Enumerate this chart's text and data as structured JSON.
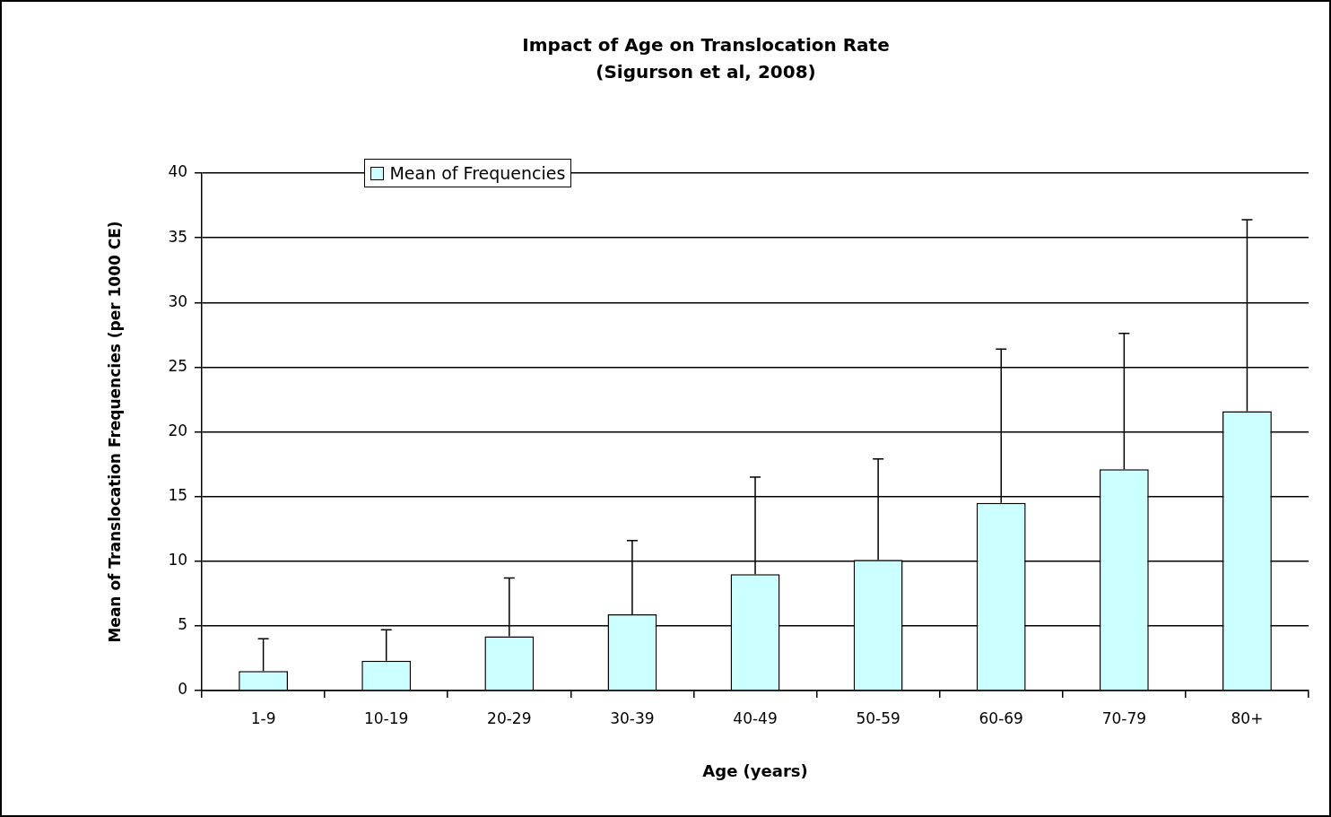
{
  "chart_data": {
    "type": "bar",
    "title": "Impact of Age on Translocation Rate",
    "subtitle": "(Sigurson et al, 2008)",
    "xlabel": "Age (years)",
    "ylabel": "Mean of Translocation Frequencies (per 1000 CE)",
    "categories": [
      "1-9",
      "10-19",
      "20-29",
      "30-39",
      "40-49",
      "50-59",
      "60-69",
      "70-79",
      "80+"
    ],
    "series": [
      {
        "name": "Mean of Frequencies",
        "color": "#ccffff",
        "values": [
          1.5,
          2.3,
          4.2,
          5.9,
          9.0,
          10.1,
          14.5,
          17.1,
          21.6
        ],
        "errors": [
          [
            1.5,
            4.0
          ],
          [
            2.3,
            4.7
          ],
          [
            4.2,
            8.7
          ],
          [
            5.9,
            11.6
          ],
          [
            9.0,
            16.5
          ],
          [
            10.1,
            17.9
          ],
          [
            14.5,
            26.4
          ],
          [
            17.1,
            27.6
          ],
          [
            21.6,
            36.4
          ]
        ]
      }
    ],
    "ylim": [
      0,
      40
    ],
    "yticks": [
      0,
      5,
      10,
      15,
      20,
      25,
      30,
      35,
      40
    ],
    "grid": "y",
    "legend": "top left"
  }
}
